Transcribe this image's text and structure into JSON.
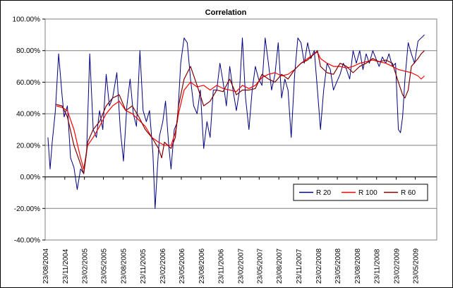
{
  "chart_data": {
    "type": "line",
    "title": "Correlation",
    "xlabel": "",
    "ylabel": "",
    "ylim": [
      -0.4,
      1.0
    ],
    "y_ticks": [
      "100.00%",
      "80.00%",
      "60.00%",
      "40.00%",
      "20.00%",
      "0.00%",
      "-20.00%",
      "-40.00%"
    ],
    "y_tick_values": [
      1.0,
      0.8,
      0.6,
      0.4,
      0.2,
      0.0,
      -0.2,
      -0.4
    ],
    "x_range": [
      "2004-08-23",
      "2009-09-01"
    ],
    "x_ticks": [
      "23/08/2004",
      "23/11/2004",
      "23/02/2005",
      "23/05/2005",
      "23/08/2005",
      "23/11/2005",
      "23/02/2006",
      "23/05/2006",
      "23/08/2006",
      "23/11/2006",
      "23/02/2007",
      "23/05/2007",
      "23/08/2007",
      "23/11/2007",
      "23/02/2008",
      "23/05/2008",
      "23/08/2008",
      "23/11/2008",
      "23/02/2009",
      "23/05/2009"
    ],
    "grid": true,
    "legend_position": "lower-right",
    "series": [
      {
        "name": "R 20",
        "color": "#000080",
        "points": [
          [
            "2004-09-05",
            0.25
          ],
          [
            "2004-09-15",
            0.05
          ],
          [
            "2004-09-25",
            0.22
          ],
          [
            "2004-10-10",
            0.42
          ],
          [
            "2004-10-25",
            0.78
          ],
          [
            "2004-11-10",
            0.52
          ],
          [
            "2004-11-20",
            0.38
          ],
          [
            "2004-12-05",
            0.45
          ],
          [
            "2004-12-20",
            0.12
          ],
          [
            "2005-01-05",
            0.06
          ],
          [
            "2005-01-20",
            -0.08
          ],
          [
            "2005-02-05",
            0.05
          ],
          [
            "2005-02-20",
            0.02
          ],
          [
            "2005-03-05",
            0.15
          ],
          [
            "2005-03-20",
            0.78
          ],
          [
            "2005-04-05",
            0.3
          ],
          [
            "2005-04-20",
            0.25
          ],
          [
            "2005-05-05",
            0.42
          ],
          [
            "2005-05-20",
            0.3
          ],
          [
            "2005-06-05",
            0.65
          ],
          [
            "2005-06-20",
            0.45
          ],
          [
            "2005-07-05",
            0.5
          ],
          [
            "2005-07-25",
            0.66
          ],
          [
            "2005-08-10",
            0.3
          ],
          [
            "2005-08-25",
            0.1
          ],
          [
            "2005-09-10",
            0.45
          ],
          [
            "2005-09-25",
            0.62
          ],
          [
            "2005-10-10",
            0.4
          ],
          [
            "2005-10-25",
            0.32
          ],
          [
            "2005-11-10",
            0.8
          ],
          [
            "2005-11-25",
            0.42
          ],
          [
            "2005-12-10",
            0.35
          ],
          [
            "2005-12-25",
            0.42
          ],
          [
            "2006-01-10",
            0.15
          ],
          [
            "2006-01-20",
            -0.2
          ],
          [
            "2006-02-01",
            0.08
          ],
          [
            "2006-02-10",
            0.26
          ],
          [
            "2006-02-25",
            0.35
          ],
          [
            "2006-03-10",
            0.48
          ],
          [
            "2006-03-25",
            0.2
          ],
          [
            "2006-04-05",
            0.05
          ],
          [
            "2006-04-20",
            0.3
          ],
          [
            "2006-05-05",
            0.35
          ],
          [
            "2006-05-20",
            0.72
          ],
          [
            "2006-06-05",
            0.88
          ],
          [
            "2006-06-20",
            0.85
          ],
          [
            "2006-07-05",
            0.62
          ],
          [
            "2006-07-20",
            0.45
          ],
          [
            "2006-08-05",
            0.4
          ],
          [
            "2006-08-20",
            0.55
          ],
          [
            "2006-09-05",
            0.18
          ],
          [
            "2006-09-20",
            0.35
          ],
          [
            "2006-10-05",
            0.25
          ],
          [
            "2006-10-20",
            0.55
          ],
          [
            "2006-11-05",
            0.55
          ],
          [
            "2006-11-20",
            0.72
          ],
          [
            "2006-12-05",
            0.6
          ],
          [
            "2006-12-20",
            0.45
          ],
          [
            "2007-01-05",
            0.7
          ],
          [
            "2007-01-20",
            0.55
          ],
          [
            "2007-02-05",
            0.42
          ],
          [
            "2007-02-20",
            0.55
          ],
          [
            "2007-03-05",
            0.88
          ],
          [
            "2007-03-20",
            0.5
          ],
          [
            "2007-04-05",
            0.3
          ],
          [
            "2007-04-20",
            0.55
          ],
          [
            "2007-05-05",
            0.7
          ],
          [
            "2007-05-20",
            0.62
          ],
          [
            "2007-06-05",
            0.58
          ],
          [
            "2007-06-20",
            0.88
          ],
          [
            "2007-07-05",
            0.72
          ],
          [
            "2007-07-20",
            0.55
          ],
          [
            "2007-08-05",
            0.65
          ],
          [
            "2007-08-20",
            0.85
          ],
          [
            "2007-09-05",
            0.5
          ],
          [
            "2007-09-20",
            0.62
          ],
          [
            "2007-10-05",
            0.55
          ],
          [
            "2007-10-20",
            0.25
          ],
          [
            "2007-11-05",
            0.65
          ],
          [
            "2007-11-20",
            0.88
          ],
          [
            "2007-12-05",
            0.85
          ],
          [
            "2007-12-20",
            0.72
          ],
          [
            "2008-01-05",
            0.85
          ],
          [
            "2008-01-20",
            0.75
          ],
          [
            "2008-02-05",
            0.8
          ],
          [
            "2008-02-20",
            0.55
          ],
          [
            "2008-03-05",
            0.3
          ],
          [
            "2008-03-20",
            0.55
          ],
          [
            "2008-04-05",
            0.72
          ],
          [
            "2008-04-20",
            0.68
          ],
          [
            "2008-05-05",
            0.55
          ],
          [
            "2008-05-20",
            0.6
          ],
          [
            "2008-06-05",
            0.65
          ],
          [
            "2008-06-20",
            0.72
          ],
          [
            "2008-07-05",
            0.68
          ],
          [
            "2008-07-20",
            0.62
          ],
          [
            "2008-08-05",
            0.8
          ],
          [
            "2008-08-20",
            0.72
          ],
          [
            "2008-09-05",
            0.8
          ],
          [
            "2008-09-20",
            0.68
          ],
          [
            "2008-10-05",
            0.78
          ],
          [
            "2008-10-20",
            0.72
          ],
          [
            "2008-11-05",
            0.8
          ],
          [
            "2008-11-20",
            0.75
          ],
          [
            "2008-12-05",
            0.7
          ],
          [
            "2008-12-20",
            0.76
          ],
          [
            "2009-01-05",
            0.72
          ],
          [
            "2009-01-20",
            0.78
          ],
          [
            "2009-02-05",
            0.7
          ],
          [
            "2009-02-20",
            0.72
          ],
          [
            "2009-03-05",
            0.3
          ],
          [
            "2009-03-15",
            0.28
          ],
          [
            "2009-03-25",
            0.38
          ],
          [
            "2009-04-05",
            0.62
          ],
          [
            "2009-04-20",
            0.85
          ],
          [
            "2009-05-05",
            0.78
          ],
          [
            "2009-05-20",
            0.72
          ],
          [
            "2009-06-05",
            0.86
          ],
          [
            "2009-06-20",
            0.88
          ],
          [
            "2009-07-05",
            0.9
          ]
        ]
      },
      {
        "name": "R 100",
        "color": "#FF0000",
        "points": [
          [
            "2004-10-15",
            0.45
          ],
          [
            "2004-11-10",
            0.44
          ],
          [
            "2004-12-05",
            0.42
          ],
          [
            "2005-01-05",
            0.3
          ],
          [
            "2005-02-05",
            0.12
          ],
          [
            "2005-02-20",
            0.05
          ],
          [
            "2005-03-10",
            0.2
          ],
          [
            "2005-04-05",
            0.25
          ],
          [
            "2005-05-05",
            0.32
          ],
          [
            "2005-06-05",
            0.4
          ],
          [
            "2005-07-05",
            0.45
          ],
          [
            "2005-08-05",
            0.48
          ],
          [
            "2005-09-05",
            0.42
          ],
          [
            "2005-10-05",
            0.4
          ],
          [
            "2005-11-05",
            0.36
          ],
          [
            "2005-12-05",
            0.32
          ],
          [
            "2006-01-05",
            0.25
          ],
          [
            "2006-02-05",
            0.22
          ],
          [
            "2006-03-05",
            0.2
          ],
          [
            "2006-04-05",
            0.2
          ],
          [
            "2006-04-25",
            0.28
          ],
          [
            "2006-05-10",
            0.4
          ],
          [
            "2006-06-05",
            0.55
          ],
          [
            "2006-07-05",
            0.6
          ],
          [
            "2006-08-05",
            0.57
          ],
          [
            "2006-09-05",
            0.58
          ],
          [
            "2006-10-05",
            0.55
          ],
          [
            "2006-11-05",
            0.58
          ],
          [
            "2006-12-05",
            0.56
          ],
          [
            "2007-01-05",
            0.55
          ],
          [
            "2007-02-05",
            0.54
          ],
          [
            "2007-03-05",
            0.58
          ],
          [
            "2007-04-05",
            0.56
          ],
          [
            "2007-05-05",
            0.58
          ],
          [
            "2007-06-05",
            0.63
          ],
          [
            "2007-07-05",
            0.65
          ],
          [
            "2007-08-05",
            0.66
          ],
          [
            "2007-09-05",
            0.64
          ],
          [
            "2007-10-05",
            0.65
          ],
          [
            "2007-11-05",
            0.68
          ],
          [
            "2007-12-05",
            0.72
          ],
          [
            "2008-01-05",
            0.75
          ],
          [
            "2008-02-05",
            0.78
          ],
          [
            "2008-02-20",
            0.79
          ],
          [
            "2008-03-05",
            0.75
          ],
          [
            "2008-04-05",
            0.72
          ],
          [
            "2008-05-05",
            0.7
          ],
          [
            "2008-06-05",
            0.7
          ],
          [
            "2008-07-05",
            0.69
          ],
          [
            "2008-08-05",
            0.7
          ],
          [
            "2008-09-05",
            0.72
          ],
          [
            "2008-10-05",
            0.73
          ],
          [
            "2008-11-05",
            0.74
          ],
          [
            "2008-12-05",
            0.73
          ],
          [
            "2009-01-05",
            0.72
          ],
          [
            "2009-02-05",
            0.7
          ],
          [
            "2009-03-05",
            0.68
          ],
          [
            "2009-04-05",
            0.67
          ],
          [
            "2009-05-05",
            0.66
          ],
          [
            "2009-06-05",
            0.64
          ],
          [
            "2009-06-20",
            0.62
          ],
          [
            "2009-07-05",
            0.64
          ]
        ]
      },
      {
        "name": "R 60",
        "color": "#800000",
        "points": [
          [
            "2004-10-10",
            0.46
          ],
          [
            "2004-11-10",
            0.45
          ],
          [
            "2004-12-05",
            0.38
          ],
          [
            "2005-01-05",
            0.2
          ],
          [
            "2005-02-05",
            0.08
          ],
          [
            "2005-02-20",
            0.02
          ],
          [
            "2005-03-10",
            0.22
          ],
          [
            "2005-04-05",
            0.3
          ],
          [
            "2005-05-05",
            0.35
          ],
          [
            "2005-06-05",
            0.45
          ],
          [
            "2005-07-05",
            0.5
          ],
          [
            "2005-08-05",
            0.52
          ],
          [
            "2005-09-05",
            0.42
          ],
          [
            "2005-10-05",
            0.45
          ],
          [
            "2005-11-05",
            0.38
          ],
          [
            "2005-12-05",
            0.3
          ],
          [
            "2006-01-05",
            0.25
          ],
          [
            "2006-02-05",
            0.18
          ],
          [
            "2006-02-20",
            0.12
          ],
          [
            "2006-03-05",
            0.22
          ],
          [
            "2006-04-05",
            0.18
          ],
          [
            "2006-04-25",
            0.25
          ],
          [
            "2006-05-10",
            0.45
          ],
          [
            "2006-06-05",
            0.62
          ],
          [
            "2006-07-05",
            0.7
          ],
          [
            "2006-08-05",
            0.58
          ],
          [
            "2006-09-05",
            0.45
          ],
          [
            "2006-10-05",
            0.48
          ],
          [
            "2006-11-05",
            0.55
          ],
          [
            "2006-12-05",
            0.54
          ],
          [
            "2007-01-05",
            0.62
          ],
          [
            "2007-02-05",
            0.52
          ],
          [
            "2007-03-05",
            0.55
          ],
          [
            "2007-04-05",
            0.55
          ],
          [
            "2007-05-05",
            0.56
          ],
          [
            "2007-06-05",
            0.65
          ],
          [
            "2007-07-05",
            0.62
          ],
          [
            "2007-08-05",
            0.6
          ],
          [
            "2007-09-05",
            0.65
          ],
          [
            "2007-10-05",
            0.62
          ],
          [
            "2007-11-05",
            0.68
          ],
          [
            "2007-12-05",
            0.72
          ],
          [
            "2008-01-05",
            0.74
          ],
          [
            "2008-02-05",
            0.78
          ],
          [
            "2008-02-20",
            0.8
          ],
          [
            "2008-03-05",
            0.7
          ],
          [
            "2008-04-05",
            0.66
          ],
          [
            "2008-05-05",
            0.65
          ],
          [
            "2008-06-05",
            0.72
          ],
          [
            "2008-07-05",
            0.7
          ],
          [
            "2008-08-05",
            0.66
          ],
          [
            "2008-09-05",
            0.7
          ],
          [
            "2008-10-05",
            0.72
          ],
          [
            "2008-11-05",
            0.75
          ],
          [
            "2008-12-05",
            0.73
          ],
          [
            "2009-01-05",
            0.74
          ],
          [
            "2009-02-05",
            0.72
          ],
          [
            "2009-03-05",
            0.6
          ],
          [
            "2009-03-25",
            0.52
          ],
          [
            "2009-04-05",
            0.5
          ],
          [
            "2009-04-20",
            0.55
          ],
          [
            "2009-05-05",
            0.7
          ],
          [
            "2009-06-05",
            0.75
          ],
          [
            "2009-06-20",
            0.78
          ],
          [
            "2009-07-05",
            0.8
          ]
        ]
      }
    ]
  }
}
